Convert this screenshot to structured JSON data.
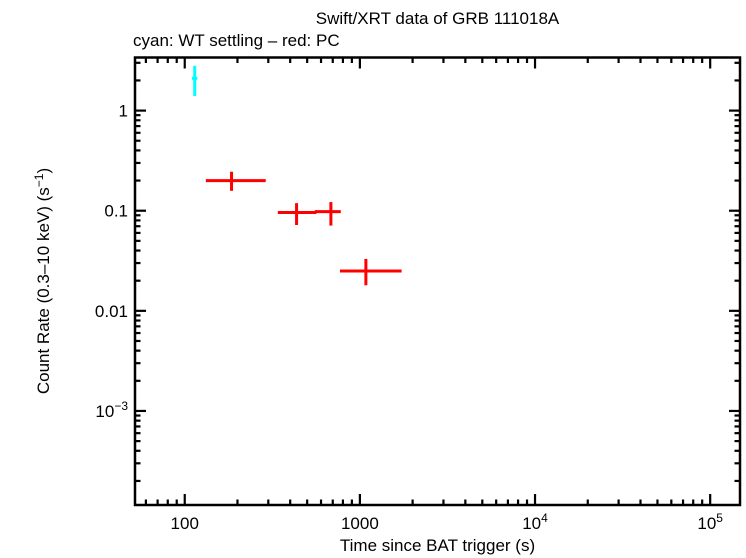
{
  "window": {
    "background": "#ffffff"
  },
  "chart_data": {
    "type": "scatter",
    "title": "Swift/XRT data of GRB 111018A",
    "subtitle": "cyan: WT settling – red: PC",
    "xlabel": "Time since BAT trigger (s)",
    "ylabel_main": "Count Rate (0.3–10 keV) (s",
    "ylabel_sup": "−1",
    "ylabel_close": ")",
    "axis_color": "#000000",
    "background_color": "#ffffff",
    "xscale": "log",
    "yscale": "log",
    "xlim": [
      52,
      148000
    ],
    "ylim": [
      0.000115,
      3.39
    ],
    "grid": false,
    "legend": "subtitle text acts as legend",
    "x_ticks": [
      {
        "text": "100",
        "sup": "",
        "value": 100
      },
      {
        "text": "1000",
        "sup": "",
        "value": 1000
      },
      {
        "text": "10",
        "sup": "4",
        "value": 10000
      },
      {
        "text": "10",
        "sup": "5",
        "value": 100000
      }
    ],
    "y_ticks": [
      {
        "text": "1",
        "sup": "",
        "value": 1
      },
      {
        "text": "0.1",
        "sup": "",
        "value": 0.1
      },
      {
        "text": "0.01",
        "sup": "",
        "value": 0.01
      },
      {
        "text": "10",
        "sup": "−3",
        "value": 0.001
      }
    ],
    "series": [
      {
        "name": "WT settling",
        "color": "#00ffff",
        "marker": "error-bar-cross",
        "points": [
          {
            "t": 114,
            "t_lo": 110,
            "t_hi": 118,
            "rate": 2.1,
            "rate_lo": 1.4,
            "rate_hi": 2.8
          }
        ]
      },
      {
        "name": "PC",
        "color": "#ff0000",
        "marker": "error-bar-cross",
        "points": [
          {
            "t": 185,
            "t_lo": 132,
            "t_hi": 290,
            "rate": 0.2,
            "rate_lo": 0.158,
            "rate_hi": 0.245
          },
          {
            "t": 435,
            "t_lo": 340,
            "t_hi": 565,
            "rate": 0.096,
            "rate_lo": 0.072,
            "rate_hi": 0.119
          },
          {
            "t": 683,
            "t_lo": 553,
            "t_hi": 778,
            "rate": 0.098,
            "rate_lo": 0.071,
            "rate_hi": 0.122
          },
          {
            "t": 1082,
            "t_lo": 770,
            "t_hi": 1730,
            "rate": 0.025,
            "rate_lo": 0.018,
            "rate_hi": 0.033
          }
        ]
      }
    ]
  }
}
